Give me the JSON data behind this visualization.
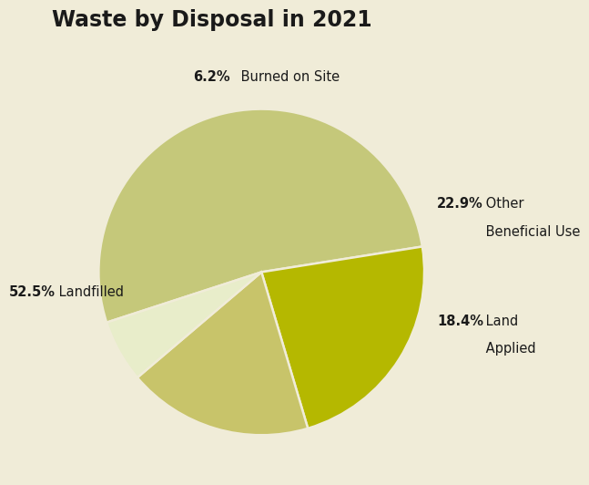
{
  "title": "Waste by Disposal in 2021",
  "background_color": "#f0ecd8",
  "slices": [
    {
      "label": "Landfilled",
      "pct": 52.5,
      "color": "#c5c87a"
    },
    {
      "label": "Other Beneficial Use",
      "pct": 22.9,
      "color": "#b5b800"
    },
    {
      "label": "Land Applied",
      "pct": 18.4,
      "color": "#c8c46a"
    },
    {
      "label": "Burned on Site",
      "pct": 6.2,
      "color": "#e8edca"
    }
  ],
  "startangle": 198,
  "title_fontsize": 17,
  "label_fontsize": 10.5,
  "pct_fontsize": 10.5
}
